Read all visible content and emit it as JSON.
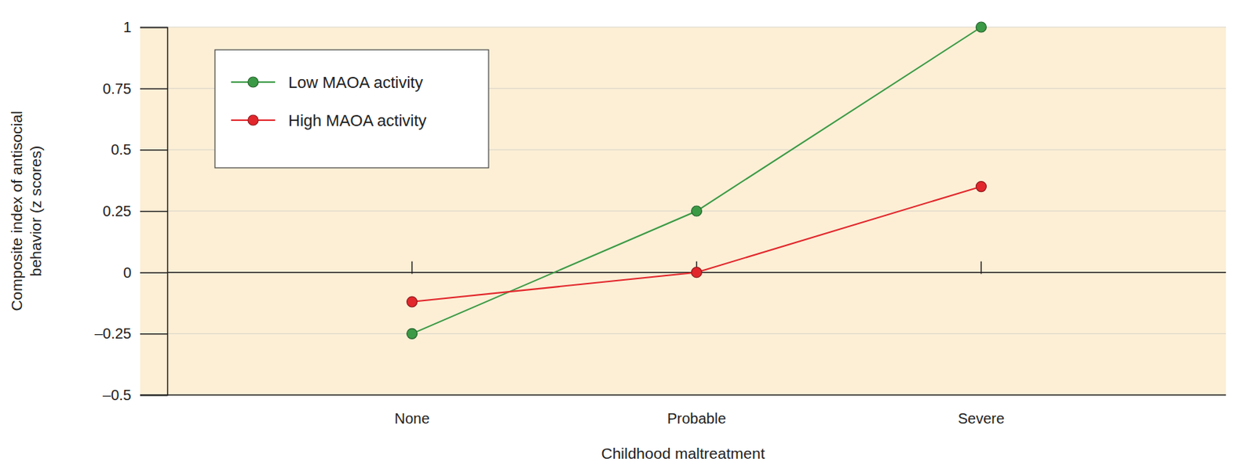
{
  "chart_data": {
    "type": "line",
    "x_label": "Childhood maltreatment",
    "y_label": "Composite index of antisocial behavior (z scores)",
    "categories": [
      "None",
      "Probable",
      "Severe"
    ],
    "series": [
      {
        "name": "Low MAOA activity",
        "color": "#3b9a45",
        "marker": "circle",
        "values": [
          -0.25,
          0.25,
          1
        ]
      },
      {
        "name": "High MAOA activity",
        "color": "#e2272c",
        "marker": "circle",
        "values": [
          -0.12,
          0,
          0.35
        ]
      }
    ],
    "ylim": [
      -0.5,
      1
    ],
    "yticks": [
      {
        "value": -0.5,
        "label": "–0.5"
      },
      {
        "value": -0.25,
        "label": "–0.25"
      },
      0,
      0.25,
      0.5,
      0.75,
      1
    ],
    "grid": true,
    "legend": "top-left"
  }
}
